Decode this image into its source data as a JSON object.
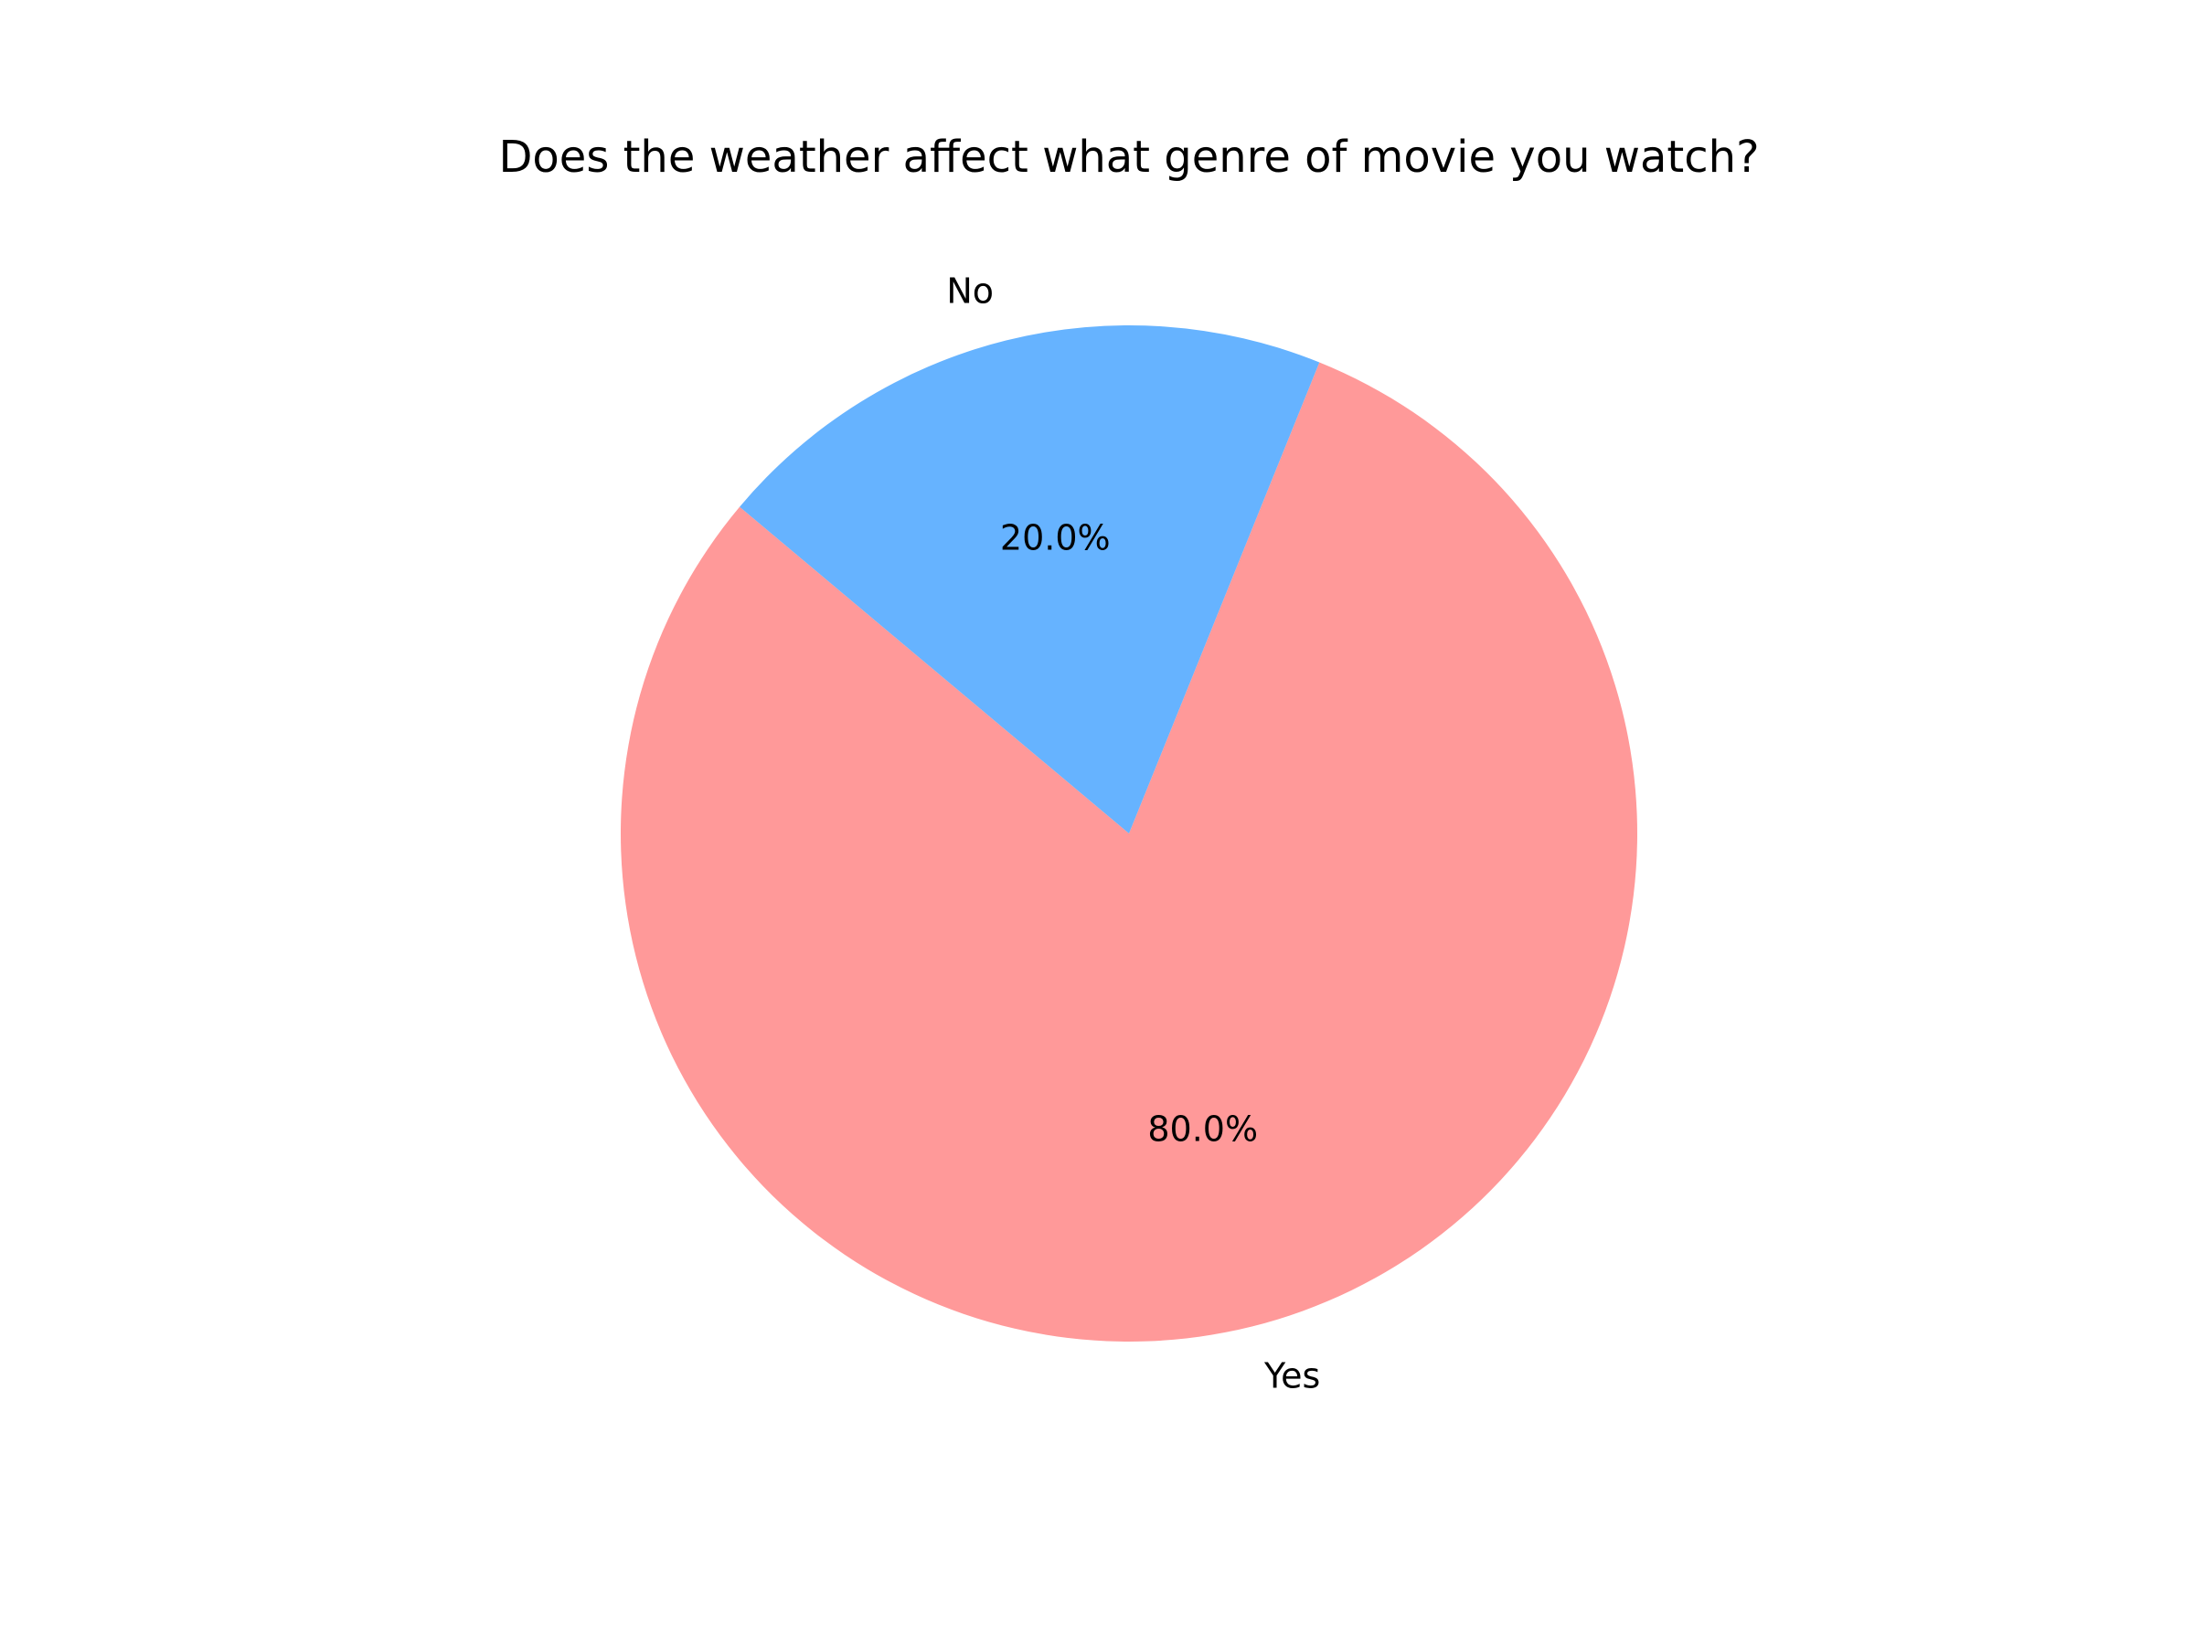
{
  "chart_data": {
    "type": "pie",
    "title": "Does the weather affect what genre of movie you watch?",
    "categories": [
      "Yes",
      "No"
    ],
    "values": [
      80.0,
      20.0
    ],
    "percent_labels": [
      "80.0%",
      "20.0%"
    ],
    "colors": [
      "#ff9999",
      "#66b3ff"
    ],
    "start_angle_deg": 140,
    "direction": "counterclockwise",
    "legend": "none"
  }
}
